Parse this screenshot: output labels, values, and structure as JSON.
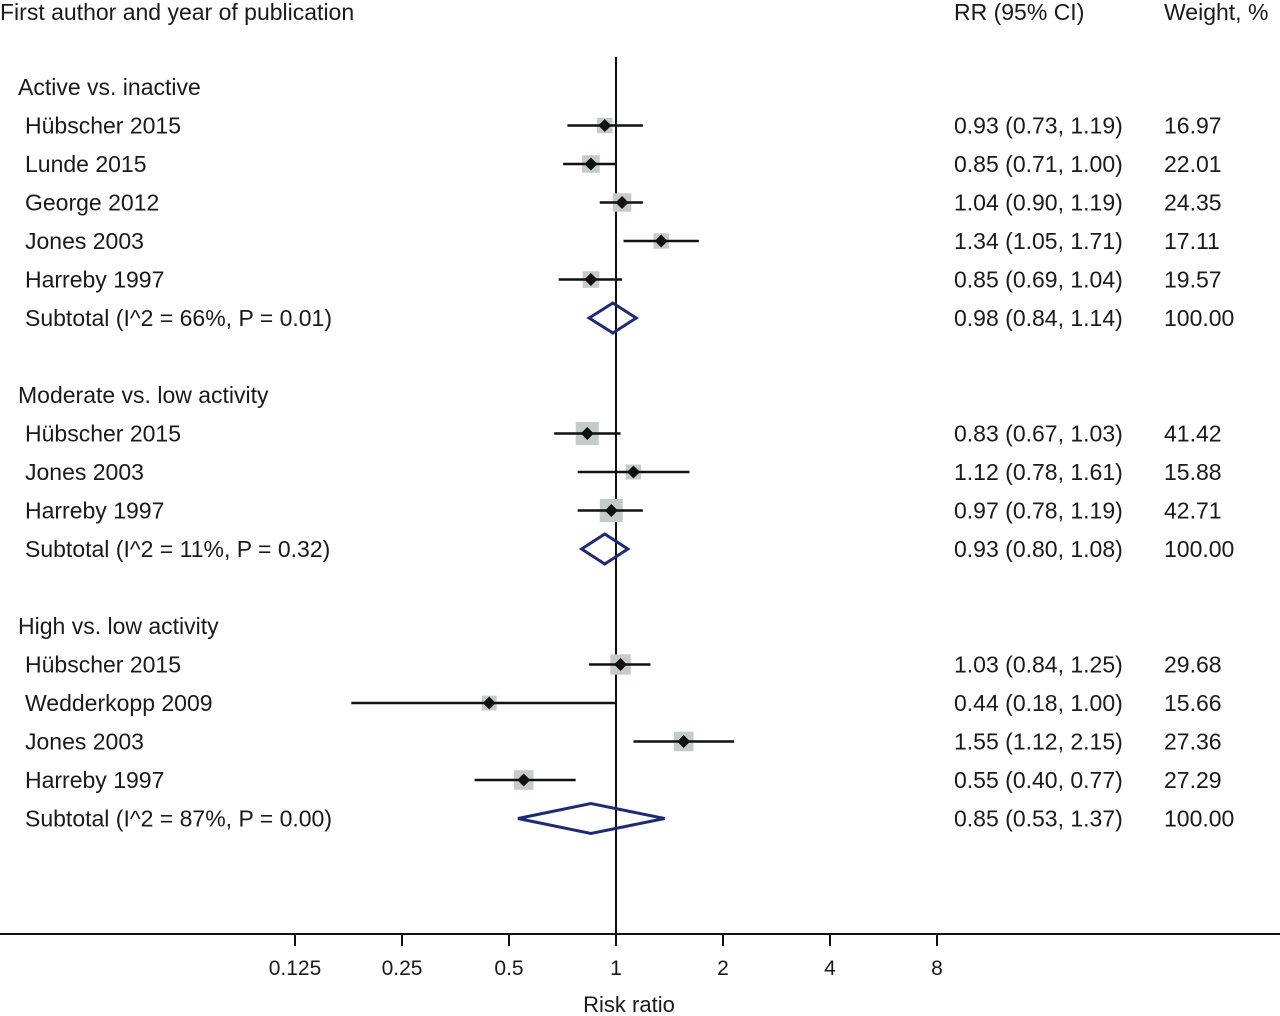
{
  "chart_data": {
    "type": "forest",
    "headers": {
      "study": "First author and year of publication",
      "estimate": "RR (95% CI)",
      "weight": "Weight, %"
    },
    "xlabel": "Risk ratio",
    "x_scale": "log2",
    "x_ticks": [
      0.125,
      0.25,
      0.5,
      1,
      2,
      4,
      8
    ],
    "x_tick_labels": [
      "0.125",
      "0.25",
      "0.5",
      "1",
      "2",
      "4",
      "8"
    ],
    "reference_line": 1,
    "colors": {
      "study_box": "#c3ccc9",
      "point": "#111111",
      "ci_line": "#111111",
      "diamond": "#1c2a7c",
      "axis": "#111111"
    },
    "groups": [
      {
        "name": "Active vs. inactive",
        "studies": [
          {
            "label": "Hübscher 2015",
            "rr": 0.93,
            "lo": 0.73,
            "hi": 1.19,
            "estimate_text": "0.93 (0.73, 1.19)",
            "weight": "16.97"
          },
          {
            "label": "Lunde 2015",
            "rr": 0.85,
            "lo": 0.71,
            "hi": 1.0,
            "estimate_text": "0.85 (0.71, 1.00)",
            "weight": "22.01"
          },
          {
            "label": "George 2012",
            "rr": 1.04,
            "lo": 0.9,
            "hi": 1.19,
            "estimate_text": "1.04 (0.90, 1.19)",
            "weight": "24.35"
          },
          {
            "label": "Jones 2003",
            "rr": 1.34,
            "lo": 1.05,
            "hi": 1.71,
            "estimate_text": "1.34 (1.05, 1.71)",
            "weight": "17.11"
          },
          {
            "label": "Harreby 1997",
            "rr": 0.85,
            "lo": 0.69,
            "hi": 1.04,
            "estimate_text": "0.85 (0.69, 1.04)",
            "weight": "19.57"
          }
        ],
        "subtotal": {
          "label": "Subtotal (I^2 = 66%, P = 0.01)",
          "rr": 0.98,
          "lo": 0.84,
          "hi": 1.14,
          "estimate_text": "0.98 (0.84, 1.14)",
          "weight": "100.00"
        }
      },
      {
        "name": "Moderate vs. low activity",
        "studies": [
          {
            "label": "Hübscher 2015",
            "rr": 0.83,
            "lo": 0.67,
            "hi": 1.03,
            "estimate_text": "0.83 (0.67, 1.03)",
            "weight": "41.42"
          },
          {
            "label": "Jones 2003",
            "rr": 1.12,
            "lo": 0.78,
            "hi": 1.61,
            "estimate_text": "1.12 (0.78, 1.61)",
            "weight": "15.88"
          },
          {
            "label": "Harreby 1997",
            "rr": 0.97,
            "lo": 0.78,
            "hi": 1.19,
            "estimate_text": "0.97 (0.78, 1.19)",
            "weight": "42.71"
          }
        ],
        "subtotal": {
          "label": "Subtotal (I^2 = 11%, P = 0.32)",
          "rr": 0.93,
          "lo": 0.8,
          "hi": 1.08,
          "estimate_text": "0.93 (0.80, 1.08)",
          "weight": "100.00"
        }
      },
      {
        "name": "High vs. low activity",
        "studies": [
          {
            "label": "Hübscher 2015",
            "rr": 1.03,
            "lo": 0.84,
            "hi": 1.25,
            "estimate_text": "1.03 (0.84, 1.25)",
            "weight": "29.68"
          },
          {
            "label": "Wedderkopp 2009",
            "rr": 0.44,
            "lo": 0.18,
            "hi": 1.0,
            "estimate_text": "0.44 (0.18, 1.00)",
            "weight": "15.66"
          },
          {
            "label": "Jones 2003",
            "rr": 1.55,
            "lo": 1.12,
            "hi": 2.15,
            "estimate_text": "1.55 (1.12, 2.15)",
            "weight": "27.36"
          },
          {
            "label": "Harreby 1997",
            "rr": 0.55,
            "lo": 0.4,
            "hi": 0.77,
            "estimate_text": "0.55 (0.40, 0.77)",
            "weight": "27.29"
          }
        ],
        "subtotal": {
          "label": "Subtotal (I^2 = 87%, P = 0.00)",
          "rr": 0.85,
          "lo": 0.53,
          "hi": 1.37,
          "estimate_text": "0.85 (0.53, 1.37)",
          "weight": "100.00"
        }
      }
    ]
  }
}
